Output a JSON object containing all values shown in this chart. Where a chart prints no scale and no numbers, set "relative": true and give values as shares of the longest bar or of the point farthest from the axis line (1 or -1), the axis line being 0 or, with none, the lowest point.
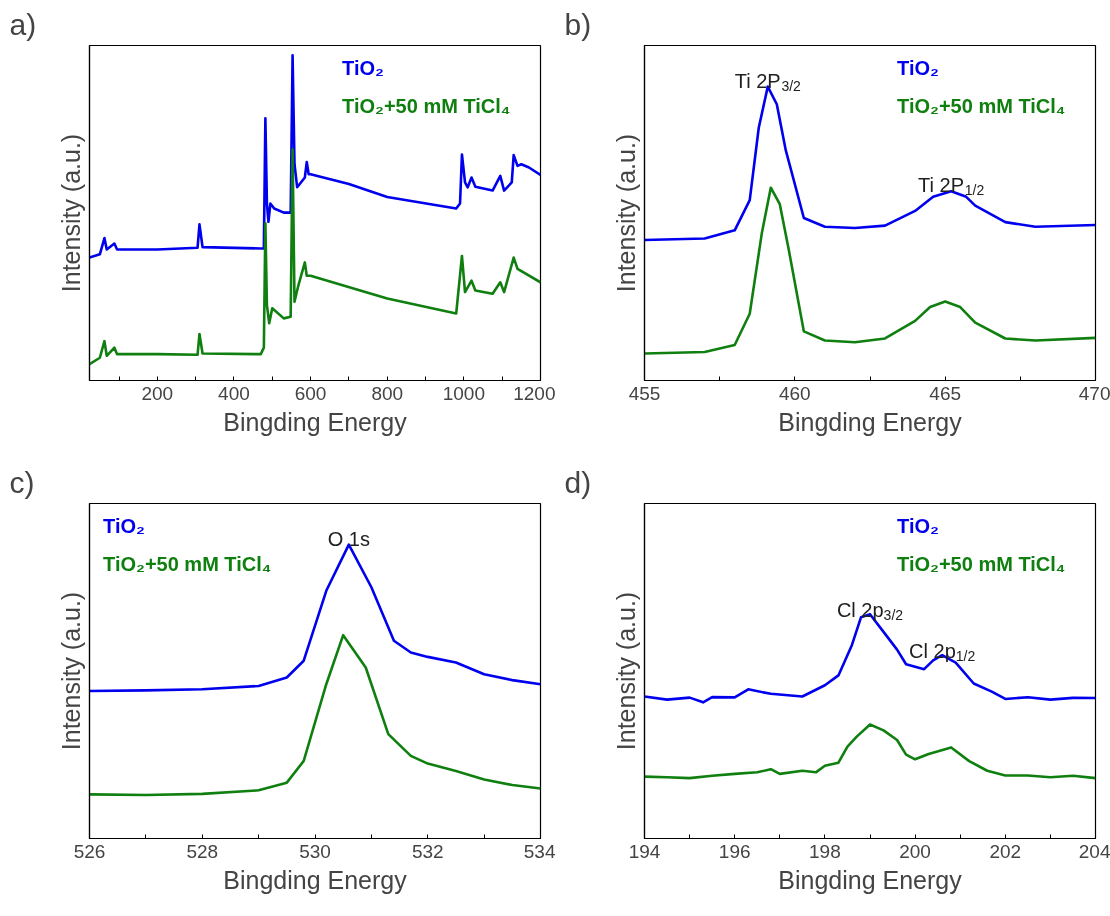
{
  "chart_data": [
    {
      "type": "line",
      "title": "a)",
      "xlabel": "Bingding Energy",
      "ylabel": "Intensity (a.u.)",
      "relative": true,
      "tick_labels": "x",
      "legend": "top right",
      "line_style": "solid",
      "xlim": [
        23,
        1200
      ],
      "xticks": [
        {
          "value": 100,
          "label": null
        },
        200,
        {
          "value": 300,
          "label": null
        },
        400,
        {
          "value": 500,
          "label": null
        },
        600,
        {
          "value": 700,
          "label": null
        },
        800,
        {
          "value": 900,
          "label": null
        },
        1000,
        {
          "value": 1100,
          "label": null
        },
        1200
      ],
      "series": [
        {
          "name": "TiO₂",
          "color": "#0000ee",
          "x": [
            23,
            50,
            62,
            68,
            88,
            95,
            200,
            305,
            310,
            318,
            470,
            478,
            482,
            486,
            490,
            495,
            505,
            530,
            548,
            553,
            558,
            565,
            585,
            590,
            595,
            600,
            700,
            800,
            980,
            990,
            995,
            1003,
            1010,
            1020,
            1030,
            1075,
            1095,
            1105,
            1125,
            1130,
            1140,
            1150,
            1170,
            1200
          ],
          "values": [
            0.378,
            0.388,
            0.438,
            0.403,
            0.421,
            0.403,
            0.403,
            0.408,
            0.48,
            0.41,
            0.406,
            0.406,
            0.806,
            0.544,
            0.488,
            0.544,
            0.529,
            0.516,
            0.516,
            1.0,
            0.665,
            0.594,
            0.624,
            0.672,
            0.634,
            0.634,
            0.604,
            0.564,
            0.529,
            0.544,
            0.695,
            0.609,
            0.594,
            0.624,
            0.596,
            0.584,
            0.629,
            0.584,
            0.609,
            0.693,
            0.66,
            0.665,
            0.655,
            0.632
          ]
        },
        {
          "name": "TiO₂+50 mM TiCl₄",
          "color": "#0f7f0f",
          "x": [
            23,
            50,
            62,
            68,
            88,
            95,
            200,
            305,
            310,
            318,
            470,
            478,
            482,
            486,
            492,
            500,
            530,
            548,
            553,
            558,
            568,
            585,
            590,
            600,
            800,
            980,
            995,
            1003,
            1020,
            1030,
            1075,
            1095,
            1105,
            1130,
            1140,
            1200
          ],
          "values": [
            0.05,
            0.07,
            0.121,
            0.076,
            0.101,
            0.081,
            0.081,
            0.079,
            0.143,
            0.083,
            0.081,
            0.101,
            0.483,
            0.232,
            0.176,
            0.222,
            0.191,
            0.196,
            0.71,
            0.242,
            0.292,
            0.363,
            0.322,
            0.322,
            0.252,
            0.206,
            0.383,
            0.272,
            0.307,
            0.277,
            0.267,
            0.302,
            0.272,
            0.378,
            0.343,
            0.302
          ]
        }
      ]
    },
    {
      "type": "line",
      "title": "b)",
      "xlabel": "Bingding Energy",
      "ylabel": "Intensity (a.u.)",
      "relative": true,
      "tick_labels": "x",
      "legend": "top right",
      "line_style": "solid",
      "xlim": [
        455,
        470
      ],
      "xticks": [
        455,
        {
          "value": 457.5,
          "label": null
        },
        460,
        {
          "value": 462.5,
          "label": null
        },
        465,
        {
          "value": 467.5,
          "label": null
        },
        470
      ],
      "annotations": [
        "Ti 2P$_{3/2}$",
        "Ti 2P$_{1/2}$"
      ],
      "series": [
        {
          "name": "TiO₂",
          "color": "#0000ee",
          "x": [
            455,
            457,
            458,
            458.5,
            458.8,
            459.1,
            459.4,
            459.7,
            460.3,
            461,
            462,
            463,
            464,
            464.6,
            465.2,
            465.7,
            466,
            467,
            468,
            470
          ],
          "values": [
            0.478,
            0.483,
            0.511,
            0.614,
            0.86,
            1.0,
            0.94,
            0.783,
            0.553,
            0.523,
            0.519,
            0.527,
            0.577,
            0.625,
            0.644,
            0.625,
            0.595,
            0.539,
            0.523,
            0.529
          ]
        },
        {
          "name": "TiO₂+50 mM TiCl₄",
          "color": "#0f7f0f",
          "x": [
            455,
            457,
            458,
            458.5,
            458.9,
            459.2,
            459.5,
            459.8,
            460.3,
            461,
            462,
            463,
            464,
            464.5,
            465,
            465.5,
            466,
            467,
            468,
            470
          ],
          "values": [
            0.092,
            0.097,
            0.121,
            0.227,
            0.5,
            0.656,
            0.6,
            0.444,
            0.167,
            0.136,
            0.13,
            0.143,
            0.203,
            0.25,
            0.269,
            0.25,
            0.197,
            0.143,
            0.136,
            0.145
          ]
        }
      ]
    },
    {
      "type": "line",
      "title": "c)",
      "xlabel": "Bingding Energy",
      "ylabel": "Intensity (a.u.)",
      "relative": true,
      "tick_labels": "x",
      "legend": "top left",
      "line_style": "solid",
      "xlim": [
        526,
        534
      ],
      "xticks": [
        526,
        {
          "value": 527,
          "label": null
        },
        528,
        {
          "value": 529,
          "label": null
        },
        530,
        {
          "value": 531,
          "label": null
        },
        532,
        {
          "value": 533,
          "label": null
        },
        534
      ],
      "annotations": [
        "O 1s"
      ],
      "series": [
        {
          "name": "TiO₂",
          "color": "#0000ee",
          "x": [
            526,
            527,
            528,
            529,
            529.5,
            529.8,
            530.2,
            530.6,
            531,
            531.4,
            531.7,
            532,
            532.5,
            533,
            533.5,
            534
          ],
          "values": [
            0.502,
            0.504,
            0.508,
            0.519,
            0.548,
            0.605,
            0.843,
            1.0,
            0.855,
            0.673,
            0.633,
            0.618,
            0.599,
            0.559,
            0.539,
            0.525
          ]
        },
        {
          "name": "TiO₂+50 mM TiCl₄",
          "color": "#0f7f0f",
          "x": [
            526,
            527,
            528,
            529,
            529.5,
            529.8,
            530.2,
            530.5,
            530.9,
            531.3,
            531.7,
            532,
            532.5,
            533,
            533.5,
            534
          ],
          "values": [
            0.15,
            0.148,
            0.152,
            0.164,
            0.19,
            0.264,
            0.525,
            0.692,
            0.582,
            0.355,
            0.281,
            0.255,
            0.23,
            0.201,
            0.182,
            0.17
          ]
        }
      ]
    },
    {
      "type": "line",
      "title": "d)",
      "xlabel": "Bingding Energy",
      "ylabel": "Intensity (a.u.)",
      "relative": true,
      "tick_labels": "x",
      "legend": "top right",
      "line_style": "solid",
      "xlim": [
        194,
        204
      ],
      "xticks": [
        194,
        {
          "value": 195,
          "label": null
        },
        196,
        {
          "value": 197,
          "label": null
        },
        198,
        {
          "value": 199,
          "label": null
        },
        200,
        {
          "value": 201,
          "label": null
        },
        202,
        {
          "value": 203,
          "label": null
        },
        204
      ],
      "annotations": [
        "Cl 2p$_{3/2}$",
        "Cl 2p$_{1/2}$"
      ],
      "series": [
        {
          "name": "TiO₂",
          "color": "#0000ee",
          "x": [
            194,
            194.5,
            195,
            195.3,
            195.5,
            196,
            196.3,
            196.8,
            197.5,
            198,
            198.3,
            198.6,
            198.8,
            199,
            199.3,
            199.6,
            199.8,
            200.2,
            200.4,
            200.6,
            200.9,
            201.3,
            201.7,
            202,
            202.5,
            203,
            203.5,
            204
          ],
          "values": [
            0.633,
            0.619,
            0.628,
            0.607,
            0.63,
            0.629,
            0.665,
            0.645,
            0.633,
            0.683,
            0.727,
            0.863,
            0.986,
            1.0,
            0.921,
            0.842,
            0.777,
            0.755,
            0.794,
            0.817,
            0.784,
            0.691,
            0.655,
            0.622,
            0.63,
            0.619,
            0.627,
            0.626
          ]
        },
        {
          "name": "TiO₂+50 mM TiCl₄",
          "color": "#0f7f0f",
          "x": [
            194,
            194.5,
            195,
            195.5,
            196,
            196.5,
            196.8,
            197,
            197.5,
            197.8,
            198,
            198.3,
            198.5,
            198.7,
            199,
            199.3,
            199.6,
            199.8,
            200,
            200.3,
            200.8,
            201.2,
            201.6,
            202,
            202.5,
            203,
            203.5,
            204
          ],
          "values": [
            0.276,
            0.273,
            0.269,
            0.28,
            0.288,
            0.295,
            0.309,
            0.288,
            0.302,
            0.295,
            0.324,
            0.338,
            0.41,
            0.453,
            0.508,
            0.482,
            0.439,
            0.374,
            0.353,
            0.377,
            0.406,
            0.345,
            0.302,
            0.281,
            0.281,
            0.273,
            0.28,
            0.269
          ]
        }
      ]
    }
  ]
}
